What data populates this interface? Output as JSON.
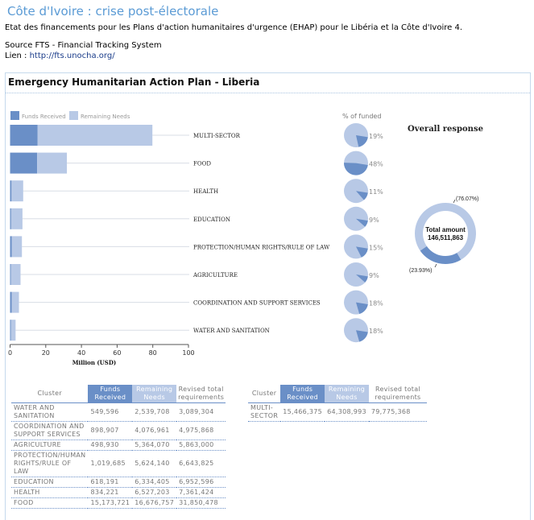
{
  "header": {
    "title": "Côte d'Ivoire : crise post-électorale",
    "description": "Etat des financements pour les Plans d'action humanitaires d'urgence (EHAP) pour le Libéria et la Côte d'Ivoire 4.",
    "source": "Source FTS - Financial Tracking System",
    "link_prefix": "Lien : ",
    "link_text": "http://fts.unocha.org/"
  },
  "panel": {
    "title": "Emergency Humanitarian Action Plan - Liberia"
  },
  "colors": {
    "funds": "#6a8fc7",
    "remaining": "#b8c9e6",
    "title": "#5b9bd5"
  },
  "chart_data": [
    {
      "type": "bar",
      "orientation": "horizontal-stacked",
      "legend": [
        "Funds Received",
        "Remaining Needs"
      ],
      "legend_position": "top-left",
      "categories": [
        "MULTI-SECTOR",
        "FOOD",
        "HEALTH",
        "EDUCATION",
        "PROTECTION/HUMAN RIGHTS/RULE OF LAW",
        "AGRICULTURE",
        "COORDINATION AND SUPPORT SERVICES",
        "WATER AND SANITATION"
      ],
      "series": [
        {
          "name": "Funds Received",
          "values": [
            15.466,
            15.174,
            0.834,
            0.618,
            1.02,
            0.499,
            0.899,
            0.55
          ]
        },
        {
          "name": "Remaining Needs",
          "values": [
            64.309,
            16.677,
            6.527,
            6.334,
            5.624,
            5.364,
            4.077,
            2.54
          ]
        }
      ],
      "xlabel": "Million (USD)",
      "xlim": [
        0,
        100
      ],
      "xticks": [
        "0",
        "20",
        "40",
        "60",
        "80",
        "100"
      ]
    },
    {
      "type": "pie",
      "title": "% of funded",
      "categories": [
        "MULTI-SECTOR",
        "FOOD",
        "HEALTH",
        "EDUCATION",
        "PROTECTION/HUMAN RIGHTS/RULE OF LAW",
        "AGRICULTURE",
        "COORDINATION AND SUPPORT SERVICES",
        "WATER AND SANITATION"
      ],
      "values": [
        19,
        48,
        11,
        9,
        15,
        9,
        18,
        18
      ],
      "labels": [
        "19%",
        "48%",
        "11%",
        "9%",
        "15%",
        "9%",
        "18%",
        "18%"
      ]
    },
    {
      "type": "pie",
      "subtype": "donut",
      "title": "Overall response",
      "center_label": "Total amount",
      "center_value": "146,511,863",
      "slices": [
        {
          "name": "Remaining Needs",
          "value": 76.07,
          "label": "(76.07%)"
        },
        {
          "name": "Funds Received",
          "value": 23.93,
          "label": "(23.93%)"
        }
      ]
    }
  ],
  "table_left": {
    "headers": [
      "Cluster",
      "Funds Received",
      "Remaining Needs",
      "Revised total requirements"
    ],
    "rows": [
      [
        "WATER AND SANITATION",
        "549,596",
        "2,539,708",
        "3,089,304"
      ],
      [
        "COORDINATION AND SUPPORT SERVICES",
        "898,907",
        "4,076,961",
        "4,975,868"
      ],
      [
        "AGRICULTURE",
        "498,930",
        "5,364,070",
        "5,863,000"
      ],
      [
        "PROTECTION/HUMAN RIGHTS/RULE OF LAW",
        "1,019,685",
        "5,624,140",
        "6,643,825"
      ],
      [
        "EDUCATION",
        "618,191",
        "6,334,405",
        "6,952,596"
      ],
      [
        "HEALTH",
        "834,221",
        "6,527,203",
        "7,361,424"
      ],
      [
        "FOOD",
        "15,173,721",
        "16,676,757",
        "31,850,478"
      ]
    ]
  },
  "table_right": {
    "headers": [
      "Cluster",
      "Funds Received",
      "Remaining Needs",
      "Revised total requirements"
    ],
    "rows": [
      [
        "MULTI-SECTOR",
        "15,466,375",
        "64,308,993",
        "79,775,368"
      ]
    ]
  }
}
